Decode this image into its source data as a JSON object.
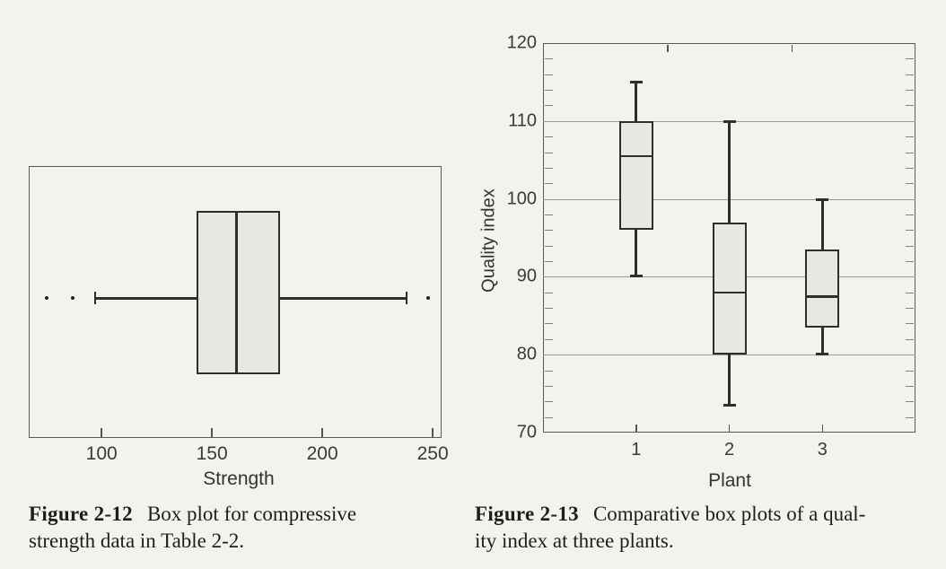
{
  "colors": {
    "paper": "#f4f2ee",
    "box_fill": "#e9e7e1",
    "line": "#2e2e2c",
    "grid": "#9a9a96",
    "frame": "#5a5a58",
    "text": "#2b2b2b"
  },
  "chart_data": [
    {
      "id": "figure-2-12",
      "type": "boxplot",
      "orientation": "horizontal",
      "title": "",
      "xlabel": "Strength",
      "xlim": [
        67,
        254
      ],
      "xticks": [
        100,
        150,
        200,
        250
      ],
      "grid": false,
      "box": {
        "whisker_low": 97,
        "q1": 143,
        "median": 161,
        "q3": 181,
        "whisker_high": 238,
        "outliers": [
          75,
          87,
          248
        ]
      },
      "caption": {
        "label": "Figure 2-12",
        "line1": "Box plot for compressive",
        "line2": "strength data in Table 2-2."
      }
    },
    {
      "id": "figure-2-13",
      "type": "boxplot",
      "orientation": "vertical",
      "title": "",
      "xlabel": "Plant",
      "ylabel": "Quality index",
      "ylim": [
        70,
        120
      ],
      "yticks": [
        70,
        80,
        90,
        100,
        110,
        120
      ],
      "minor_tick_step": 2,
      "gridlines": [
        80,
        90,
        100,
        110
      ],
      "grid": true,
      "categories": [
        "1",
        "2",
        "3"
      ],
      "series": [
        {
          "name": "1",
          "whisker_low": 90,
          "q1": 96,
          "median": 105.5,
          "q3": 110,
          "whisker_high": 115
        },
        {
          "name": "2",
          "whisker_low": 73.5,
          "q1": 80,
          "median": 88,
          "q3": 97,
          "whisker_high": 110
        },
        {
          "name": "3",
          "whisker_low": 80,
          "q1": 83.5,
          "median": 87.5,
          "q3": 93.5,
          "whisker_high": 100
        }
      ],
      "caption": {
        "label": "Figure 2-13",
        "line1": "Comparative box plots of a qual-",
        "line2": "ity index at three plants."
      }
    }
  ]
}
